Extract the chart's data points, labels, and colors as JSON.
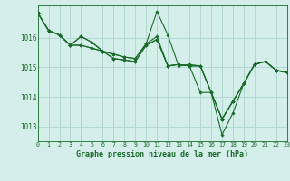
{
  "title": "Graphe pression niveau de la mer (hPa)",
  "bg_color": "#d4eeea",
  "grid_color": "#b2d8d2",
  "line_color": "#1a6b2a",
  "xlim": [
    0,
    23
  ],
  "ylim": [
    1012.5,
    1017.1
  ],
  "yticks": [
    1013,
    1014,
    1015,
    1016
  ],
  "xticks": [
    0,
    1,
    2,
    3,
    4,
    5,
    6,
    7,
    8,
    9,
    10,
    11,
    12,
    13,
    14,
    15,
    16,
    17,
    18,
    19,
    20,
    21,
    22,
    23
  ],
  "series": [
    [
      1016.85,
      1016.25,
      1016.1,
      1015.75,
      1015.75,
      1015.65,
      1015.55,
      1015.45,
      1015.35,
      1015.3,
      1015.8,
      1016.05,
      1015.05,
      1015.1,
      1015.05,
      1015.05,
      1014.15,
      1013.25,
      1013.85,
      1014.45,
      1015.1,
      1015.2,
      1014.9,
      1014.85
    ],
    [
      1016.85,
      1016.25,
      1016.1,
      1015.75,
      1015.75,
      1015.65,
      1015.55,
      1015.45,
      1015.35,
      1015.3,
      1015.8,
      1016.9,
      1016.1,
      1015.05,
      1015.1,
      1015.05,
      1014.15,
      1012.72,
      1013.45,
      1014.45,
      1015.1,
      1015.2,
      1014.9,
      1014.82
    ],
    [
      1016.85,
      1016.25,
      1016.1,
      1015.75,
      1016.05,
      1015.85,
      1015.55,
      1015.3,
      1015.25,
      1015.2,
      1015.75,
      1015.95,
      1015.05,
      1015.1,
      1015.05,
      1014.15,
      1014.15,
      1013.25,
      1013.85,
      1014.45,
      1015.1,
      1015.2,
      1014.9,
      1014.82
    ],
    [
      1016.85,
      1016.25,
      1016.1,
      1015.75,
      1016.05,
      1015.85,
      1015.55,
      1015.3,
      1015.25,
      1015.2,
      1015.75,
      1015.95,
      1015.05,
      1015.1,
      1015.05,
      1015.05,
      1014.15,
      1013.25,
      1013.85,
      1014.45,
      1015.1,
      1015.2,
      1014.9,
      1014.82
    ]
  ]
}
